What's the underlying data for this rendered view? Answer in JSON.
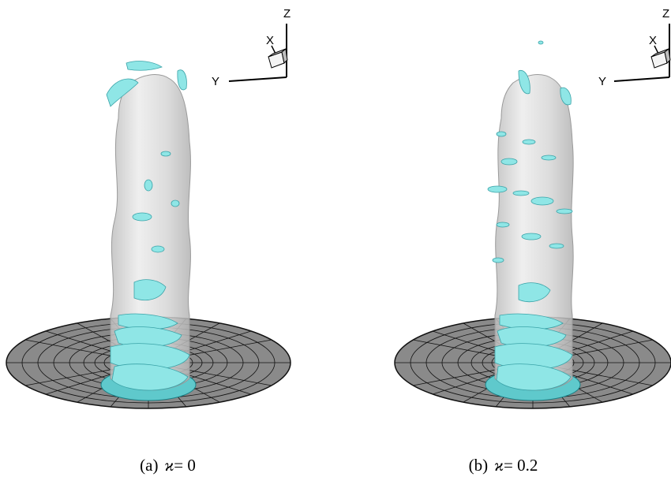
{
  "panels": [
    {
      "id": "a",
      "caption_label": "(a)",
      "caption_symbol": "ϰ",
      "caption_value": "= 0",
      "axes": {
        "x": "X",
        "y": "Y",
        "z": "Z"
      }
    },
    {
      "id": "b",
      "caption_label": "(b)",
      "caption_symbol": "ϰ",
      "caption_value": "= 0.2",
      "axes": {
        "x": "X",
        "y": "Y",
        "z": "Z"
      }
    }
  ],
  "colors": {
    "column": "#d9d9d9",
    "column_edge": "#a8a8a8",
    "isosurface": "#8fe6e6",
    "isosurface_edge": "#3aa3a8",
    "grid": "#1a1a1a"
  }
}
